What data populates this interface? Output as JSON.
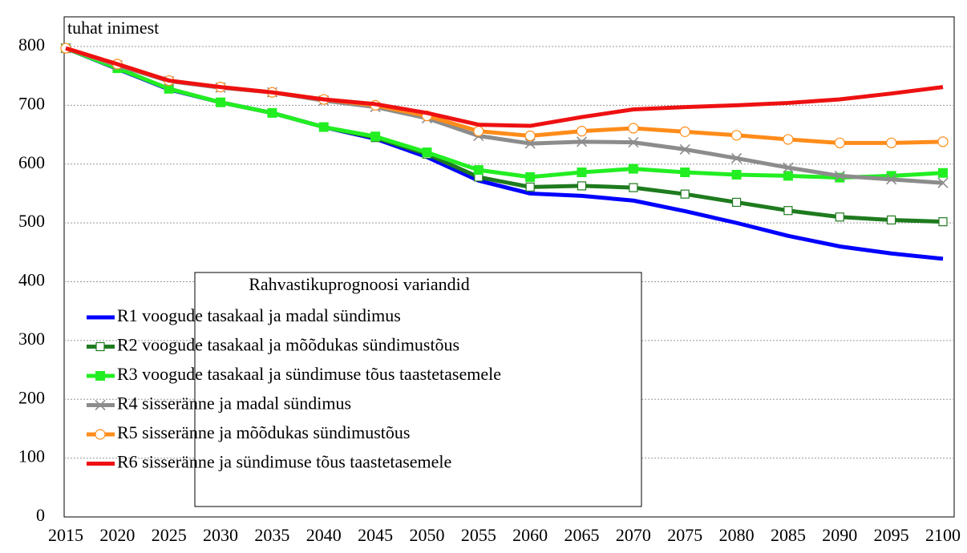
{
  "chart_data": {
    "type": "line",
    "y_label": "tuhat inimest",
    "legend_title": "Rahvastikuprognoosi variandid",
    "x": [
      2015,
      2020,
      2025,
      2030,
      2035,
      2040,
      2045,
      2050,
      2055,
      2060,
      2065,
      2070,
      2075,
      2080,
      2085,
      2090,
      2095,
      2100
    ],
    "xlim": [
      2015,
      2100
    ],
    "ylim": [
      0,
      800
    ],
    "yticks": [
      0,
      100,
      200,
      300,
      400,
      500,
      600,
      700,
      800
    ],
    "grid": true,
    "series": [
      {
        "name": "R1 voogude tasakaal ja madal sündimus",
        "color": "#0000ff",
        "marker": "none",
        "values": [
          797,
          762,
          727,
          705,
          687,
          663,
          643,
          612,
          572,
          550,
          546,
          538,
          520,
          500,
          478,
          460,
          448,
          439
        ]
      },
      {
        "name": "R2 voogude tasakaal ja mõõdukas sündimustõus",
        "color": "#1e7b1e",
        "marker": "open-square",
        "values": [
          797,
          763,
          728,
          705,
          687,
          663,
          645,
          617,
          578,
          561,
          563,
          560,
          549,
          535,
          521,
          510,
          505,
          502
        ]
      },
      {
        "name": "R3 voogude tasakaal ja sündimuse tõus taastetasemele",
        "color": "#22ee22",
        "marker": "square",
        "values": [
          797,
          763,
          728,
          705,
          687,
          663,
          647,
          620,
          590,
          578,
          586,
          592,
          586,
          582,
          580,
          577,
          580,
          585
        ]
      },
      {
        "name": "R4 sisseränne ja madal sündimus",
        "color": "#8c8c8c",
        "marker": "x",
        "values": [
          797,
          768,
          741,
          730,
          722,
          708,
          697,
          678,
          648,
          635,
          638,
          637,
          625,
          610,
          594,
          580,
          574,
          568
        ]
      },
      {
        "name": "R5 sisseränne ja mõõdukas sündimustõus",
        "color": "#ff8c1a",
        "marker": "open-circle",
        "values": [
          797,
          770,
          742,
          731,
          722,
          710,
          700,
          682,
          656,
          648,
          656,
          661,
          655,
          649,
          642,
          636,
          636,
          638
        ]
      },
      {
        "name": "R6 sisseränne ja sündimuse tõus taastetasemele",
        "color": "#ee1111",
        "marker": "none",
        "values": [
          797,
          770,
          742,
          731,
          722,
          710,
          702,
          687,
          667,
          665,
          680,
          693,
          697,
          700,
          704,
          710,
          720,
          731
        ]
      }
    ]
  }
}
